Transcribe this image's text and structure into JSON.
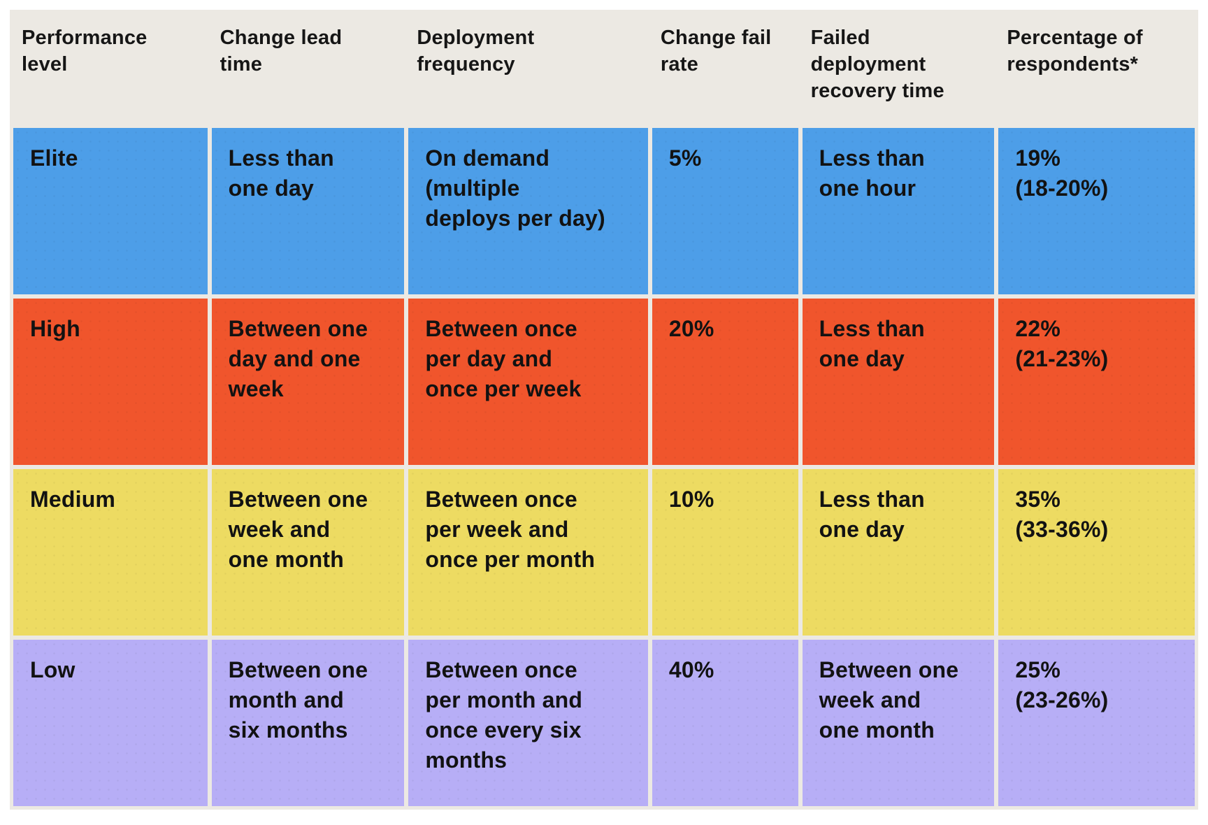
{
  "colors": {
    "page_background": "#ffffff",
    "table_background": "#ece9e3",
    "text": "#121212",
    "row_elite": "#4d9ee8",
    "row_high": "#f0552c",
    "row_medium": "#eddb62",
    "row_low": "#b7aef6"
  },
  "chart_data": {
    "type": "table",
    "columns": [
      {
        "id": "performance_level",
        "label": "Performance level",
        "display": "Performance\nlevel"
      },
      {
        "id": "change_lead_time",
        "label": "Change lead time",
        "display": "Change lead\ntime"
      },
      {
        "id": "deployment_frequency",
        "label": "Deployment frequency",
        "display": "Deployment\nfrequency"
      },
      {
        "id": "change_fail_rate",
        "label": "Change fail rate",
        "display": "Change fail\nrate"
      },
      {
        "id": "failed_deployment_recovery_time",
        "label": "Failed deployment recovery time",
        "display": "Failed\ndeployment\nrecovery time"
      },
      {
        "id": "percentage_of_respondents",
        "label": "Percentage of respondents*",
        "display": "Percentage of\nrespondents*"
      }
    ],
    "rows": [
      {
        "level": "Elite",
        "color": "#4d9ee8",
        "change_lead_time": {
          "value": "Less than one day",
          "display": "Less than\none day"
        },
        "deployment_frequency": {
          "value": "On demand (multiple deploys per day)",
          "display": "On demand\n(multiple\ndeploys per day)"
        },
        "change_fail_rate": {
          "value": "5%",
          "display": "5%"
        },
        "failed_deployment_recovery_time": {
          "value": "Less than one hour",
          "display": "Less than\none hour"
        },
        "percentage_of_respondents": {
          "value": "19% (18-20%)",
          "display": "19%\n(18-20%)"
        }
      },
      {
        "level": "High",
        "color": "#f0552c",
        "change_lead_time": {
          "value": "Between one day and one week",
          "display": "Between one\nday and one\nweek"
        },
        "deployment_frequency": {
          "value": "Between once per day and once per week",
          "display": "Between once\nper day and\nonce per week"
        },
        "change_fail_rate": {
          "value": "20%",
          "display": "20%"
        },
        "failed_deployment_recovery_time": {
          "value": "Less than one day",
          "display": "Less than\none day"
        },
        "percentage_of_respondents": {
          "value": "22% (21-23%)",
          "display": "22%\n(21-23%)"
        }
      },
      {
        "level": "Medium",
        "color": "#eddb62",
        "change_lead_time": {
          "value": "Between one week and one month",
          "display": "Between one\nweek and\none month"
        },
        "deployment_frequency": {
          "value": "Between once per week and once per month",
          "display": "Between once\nper week and\nonce per month"
        },
        "change_fail_rate": {
          "value": "10%",
          "display": "10%"
        },
        "failed_deployment_recovery_time": {
          "value": "Less than one day",
          "display": "Less than\none day"
        },
        "percentage_of_respondents": {
          "value": "35% (33-36%)",
          "display": "35%\n(33-36%)"
        }
      },
      {
        "level": "Low",
        "color": "#b7aef6",
        "change_lead_time": {
          "value": "Between one month and six months",
          "display": "Between one\nmonth and\nsix months"
        },
        "deployment_frequency": {
          "value": "Between once per month and once every six months",
          "display": "Between once\nper month and\nonce every six\nmonths"
        },
        "change_fail_rate": {
          "value": "40%",
          "display": "40%"
        },
        "failed_deployment_recovery_time": {
          "value": "Between one week and one month",
          "display": "Between one\nweek and\none month"
        },
        "percentage_of_respondents": {
          "value": "25% (23-26%)",
          "display": "25%\n(23-26%)"
        }
      }
    ]
  }
}
